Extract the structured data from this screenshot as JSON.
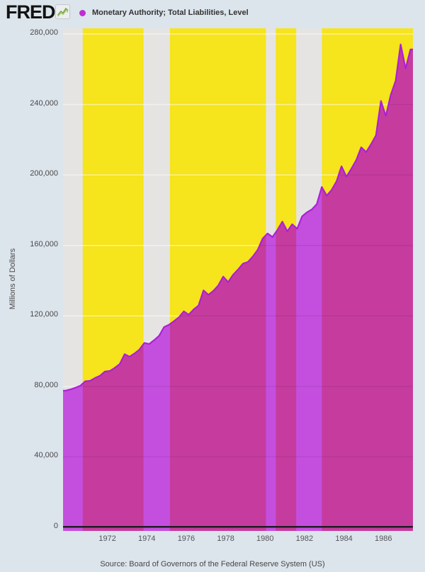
{
  "header": {
    "logo_text": "FRED",
    "logo_icon": "sparkline-chart-icon",
    "legend": {
      "marker_icon": "circle-marker",
      "marker_color": "#bd2fd0",
      "label": "Monetary Authority; Total Liabilities, Level"
    }
  },
  "y_axis": {
    "label": "Millions of Dollars",
    "ticks": [
      {
        "value": 280000,
        "label": "280,000"
      },
      {
        "value": 240000,
        "label": "240,000"
      },
      {
        "value": 200000,
        "label": "200,000"
      },
      {
        "value": 160000,
        "label": "160,000"
      },
      {
        "value": 120000,
        "label": "120,000"
      },
      {
        "value": 80000,
        "label": "80,000"
      },
      {
        "value": 40000,
        "label": "40,000"
      },
      {
        "value": 0,
        "label": "0"
      }
    ]
  },
  "x_axis": {
    "ticks": [
      {
        "year": 1972,
        "label": "1972"
      },
      {
        "year": 1974,
        "label": "1974"
      },
      {
        "year": 1976,
        "label": "1976"
      },
      {
        "year": 1978,
        "label": "1978"
      },
      {
        "year": 1980,
        "label": "1980"
      },
      {
        "year": 1982,
        "label": "1982"
      },
      {
        "year": 1984,
        "label": "1984"
      },
      {
        "year": 1986,
        "label": "1986"
      }
    ]
  },
  "source": "Source: Board of Governors of the Federal Reserve System (US)",
  "colors": {
    "page_background": "#dce4ec",
    "plot_background": "#f6e41c",
    "recession_band": "#e5e4e2",
    "area_fill": "#c53c9e",
    "area_fill_over_recession": "#c44fdf",
    "line": "#ac20d5",
    "axis_line": "#1e1b24",
    "gridline_light": "rgba(255,255,255,0.5)",
    "gridline_over_area": "rgba(70,10,70,0.12)"
  },
  "chart_data": {
    "type": "area",
    "title": "Monetary Authority; Total Liabilities, Level",
    "xlabel": "",
    "ylabel": "Millions of Dollars",
    "unit": "Millions of Dollars",
    "frequency": "quarterly",
    "x_range": [
      1969.75,
      1987.5
    ],
    "ylim": [
      0,
      282500
    ],
    "y_gridlines": [
      0,
      40000,
      80000,
      120000,
      160000,
      200000,
      240000,
      280000
    ],
    "legend_position": "top",
    "grid": true,
    "x_start": 1969.875,
    "x_step": 0.25,
    "recession_bands": [
      [
        1969.75,
        1970.75
      ],
      [
        1973.83,
        1975.17
      ],
      [
        1980.04,
        1980.54
      ],
      [
        1981.58,
        1982.88
      ]
    ],
    "periods": [
      "1969-Q4",
      "1970-Q1",
      "1970-Q2",
      "1970-Q3",
      "1970-Q4",
      "1971-Q1",
      "1971-Q2",
      "1971-Q3",
      "1971-Q4",
      "1972-Q1",
      "1972-Q2",
      "1972-Q3",
      "1972-Q4",
      "1973-Q1",
      "1973-Q2",
      "1973-Q3",
      "1973-Q4",
      "1974-Q1",
      "1974-Q2",
      "1974-Q3",
      "1974-Q4",
      "1975-Q1",
      "1975-Q2",
      "1975-Q3",
      "1975-Q4",
      "1976-Q1",
      "1976-Q2",
      "1976-Q3",
      "1976-Q4",
      "1977-Q1",
      "1977-Q2",
      "1977-Q3",
      "1977-Q4",
      "1978-Q1",
      "1978-Q2",
      "1978-Q3",
      "1978-Q4",
      "1979-Q1",
      "1979-Q2",
      "1979-Q3",
      "1979-Q4",
      "1980-Q1",
      "1980-Q2",
      "1980-Q3",
      "1980-Q4",
      "1981-Q1",
      "1981-Q2",
      "1981-Q3",
      "1981-Q4",
      "1982-Q1",
      "1982-Q2",
      "1982-Q3",
      "1982-Q4",
      "1983-Q1",
      "1983-Q2",
      "1983-Q3",
      "1983-Q4",
      "1984-Q1",
      "1984-Q2",
      "1984-Q3",
      "1984-Q4",
      "1985-Q1",
      "1985-Q2",
      "1985-Q3",
      "1985-Q4",
      "1986-Q1",
      "1986-Q2",
      "1986-Q3",
      "1986-Q4",
      "1987-Q1",
      "1987-Q2",
      "1987-Q3"
    ],
    "values": [
      77600,
      78300,
      79300,
      80400,
      82900,
      83200,
      84800,
      86100,
      88400,
      88800,
      90600,
      92700,
      98300,
      96900,
      98700,
      100900,
      104700,
      104100,
      106300,
      108800,
      113700,
      115000,
      117000,
      119200,
      122600,
      120700,
      123700,
      125900,
      134500,
      132000,
      134200,
      137300,
      142300,
      139200,
      143300,
      146300,
      149700,
      150600,
      153700,
      157500,
      163900,
      166800,
      164800,
      168800,
      173500,
      168000,
      172000,
      169500,
      176500,
      178800,
      180500,
      183500,
      193200,
      188300,
      191500,
      196500,
      204900,
      199000,
      203500,
      208500,
      215700,
      213000,
      217500,
      222500,
      242000,
      233500,
      245500,
      253500,
      274100,
      260400,
      271200,
      271200
    ]
  }
}
